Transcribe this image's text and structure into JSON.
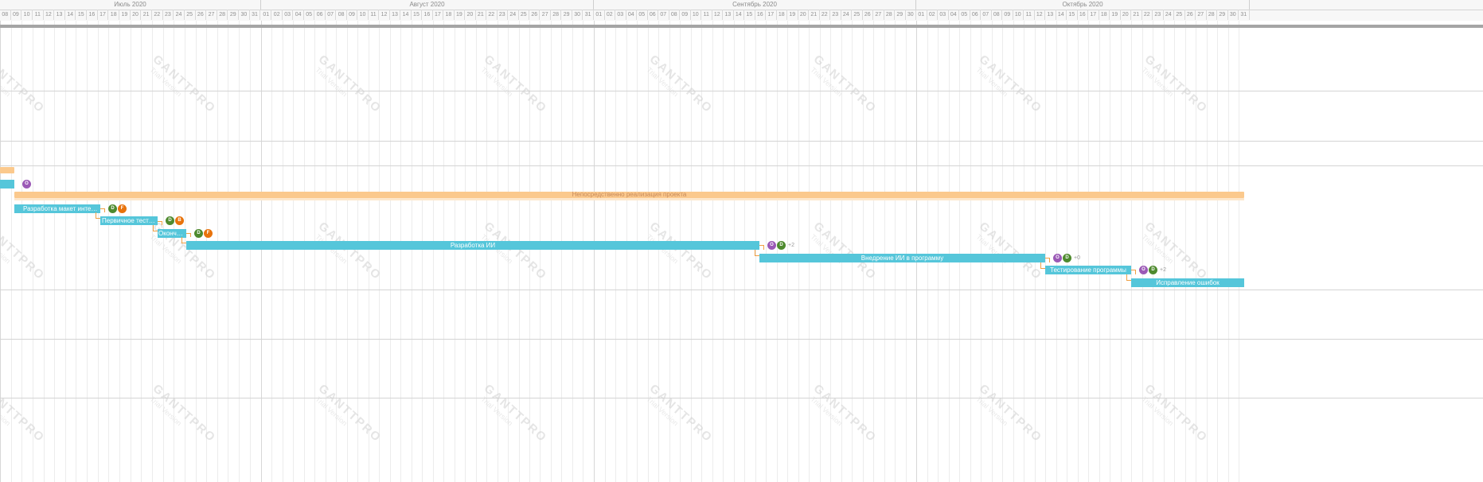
{
  "timeline": {
    "months": [
      {
        "label": "Июль 2020"
      },
      {
        "label": "Август 2020"
      },
      {
        "label": "Сентябрь 2020"
      },
      {
        "label": "Октябрь 2020"
      }
    ],
    "days": {
      "july": [
        "08",
        "09",
        "10",
        "11",
        "12",
        "13",
        "14",
        "15",
        "16",
        "17",
        "18",
        "19",
        "20",
        "21",
        "22",
        "23",
        "24",
        "25",
        "26",
        "27",
        "28",
        "29",
        "30",
        "31"
      ],
      "august": [
        "01",
        "02",
        "03",
        "04",
        "05",
        "06",
        "07",
        "08",
        "09",
        "10",
        "11",
        "12",
        "13",
        "14",
        "15",
        "16",
        "17",
        "18",
        "19",
        "20",
        "21",
        "22",
        "23",
        "24",
        "25",
        "26",
        "27",
        "28",
        "29",
        "30",
        "31"
      ],
      "september": [
        "01",
        "02",
        "03",
        "04",
        "05",
        "06",
        "07",
        "08",
        "09",
        "10",
        "11",
        "12",
        "13",
        "14",
        "15",
        "16",
        "17",
        "18",
        "19",
        "20",
        "21",
        "22",
        "23",
        "24",
        "25",
        "26",
        "27",
        "28",
        "29",
        "30"
      ],
      "october": [
        "01",
        "02",
        "03",
        "04",
        "05",
        "06",
        "07",
        "08",
        "09",
        "10",
        "11",
        "12",
        "13",
        "14",
        "15",
        "16",
        "17",
        "18",
        "19",
        "20",
        "21",
        "22",
        "23",
        "24",
        "25",
        "26",
        "27",
        "28",
        "29",
        "30",
        "31"
      ]
    }
  },
  "watermark": {
    "main": "GANTTPRO",
    "sub": "Trial Version"
  },
  "summary": {
    "label": "Непосредственно реализация проекта",
    "color": "#fbc98d"
  },
  "tasks": [
    {
      "label": "",
      "assignees": [
        {
          "initial": "O",
          "color": "#9b59b6"
        }
      ],
      "extra": ""
    },
    {
      "label": "Разработка макет интерфейса",
      "assignees": [
        {
          "initial": "D",
          "color": "#4e8a2e"
        },
        {
          "initial": "F",
          "color": "#e8730c"
        }
      ],
      "extra": ""
    },
    {
      "label": "Первичное тестирова...",
      "assignees": [
        {
          "initial": "D",
          "color": "#4e8a2e"
        },
        {
          "initial": "B",
          "color": "#e8730c"
        }
      ],
      "extra": ""
    },
    {
      "label": "Окончате...",
      "assignees": [
        {
          "initial": "D",
          "color": "#4e8a2e"
        },
        {
          "initial": "F",
          "color": "#e8730c"
        }
      ],
      "extra": ""
    },
    {
      "label": "Разработка ИИ",
      "assignees": [
        {
          "initial": "O",
          "color": "#9b59b6"
        },
        {
          "initial": "D",
          "color": "#4e8a2e"
        }
      ],
      "extra": "+2"
    },
    {
      "label": "Внедрение ИИ в программу",
      "assignees": [
        {
          "initial": "O",
          "color": "#9b59b6"
        },
        {
          "initial": "D",
          "color": "#4e8a2e"
        }
      ],
      "extra": "+0"
    },
    {
      "label": "Тестирование программы",
      "assignees": [
        {
          "initial": "O",
          "color": "#9b59b6"
        },
        {
          "initial": "D",
          "color": "#4e8a2e"
        }
      ],
      "extra": "+2"
    },
    {
      "label": "Исправление ошибок",
      "assignees": [],
      "extra": ""
    }
  ],
  "colors": {
    "bar": "#55c6da",
    "summary": "#fbc98d",
    "connector": "#f0a044"
  }
}
